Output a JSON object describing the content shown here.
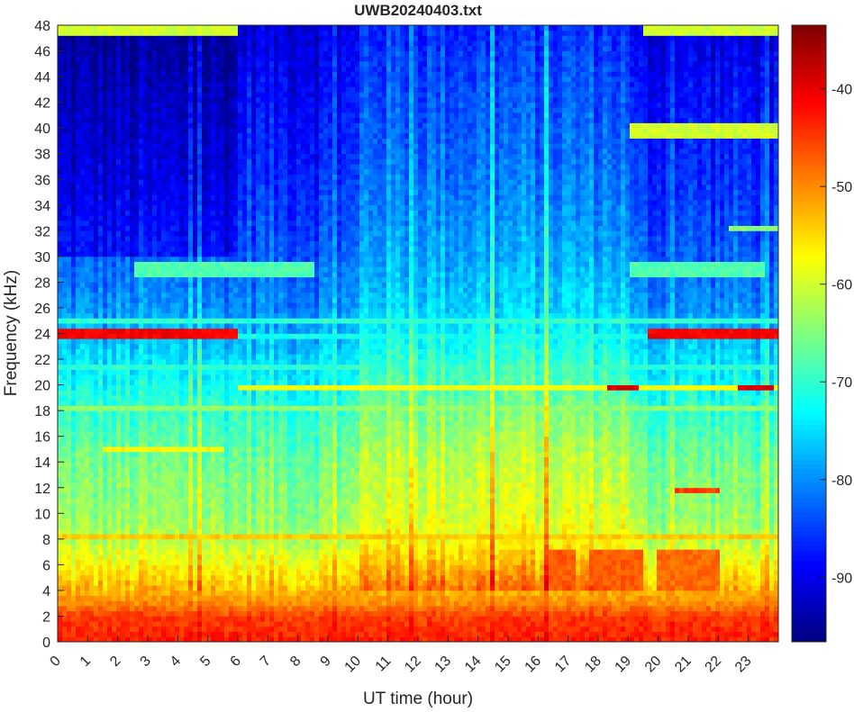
{
  "chart_data": {
    "type": "heatmap",
    "title": "UWB20240403.txt",
    "xlabel": "UT time (hour)",
    "ylabel": "Frequency (kHz)",
    "xlim": [
      0,
      24
    ],
    "ylim": [
      0,
      48
    ],
    "x_ticks": [
      0,
      1,
      2,
      3,
      4,
      5,
      6,
      7,
      8,
      9,
      10,
      11,
      12,
      13,
      14,
      15,
      16,
      17,
      18,
      19,
      20,
      21,
      22,
      23
    ],
    "y_ticks": [
      0,
      2,
      4,
      6,
      8,
      10,
      12,
      14,
      16,
      18,
      20,
      22,
      24,
      26,
      28,
      30,
      32,
      34,
      36,
      38,
      40,
      42,
      44,
      46,
      48
    ],
    "colormap": "jet",
    "clim": [
      -96.6,
      -33.5
    ],
    "colorbar_ticks": [
      -40,
      -50,
      -60,
      -70,
      -80,
      -90
    ],
    "background_profile_db": {
      "freq_khz": [
        0,
        2,
        3,
        5,
        8,
        10,
        14,
        18,
        22,
        26,
        30,
        36,
        44,
        48
      ],
      "level_db": [
        -43,
        -45,
        -50,
        -55,
        -62,
        -64,
        -66,
        -70,
        -75,
        -80,
        -83,
        -86,
        -89,
        -91
      ]
    },
    "features": [
      {
        "freq": 24,
        "width": 0.5,
        "t": [
          0,
          6
        ],
        "level": -41
      },
      {
        "freq": 24,
        "width": 0.5,
        "t": [
          19.6,
          24
        ],
        "level": -41
      },
      {
        "freq": 24,
        "width": 0.4,
        "t": [
          6,
          19.6
        ],
        "level": -72
      },
      {
        "freq": 25,
        "width": 0.3,
        "t": [
          0,
          24
        ],
        "level": -70
      },
      {
        "freq": 19.8,
        "width": 0.4,
        "t": [
          6,
          24
        ],
        "level": -58
      },
      {
        "freq": 19.8,
        "width": 0.6,
        "t": [
          18.3,
          19.3
        ],
        "level": -39
      },
      {
        "freq": 19.8,
        "width": 0.6,
        "t": [
          22.7,
          23.8
        ],
        "level": -39
      },
      {
        "freq": 8.3,
        "width": 0.4,
        "t": [
          0,
          24
        ],
        "level": -54
      },
      {
        "freq": 18.3,
        "width": 0.3,
        "t": [
          0,
          24
        ],
        "level": -64
      },
      {
        "freq": 21.5,
        "width": 0.3,
        "t": [
          0,
          24
        ],
        "level": -70
      },
      {
        "freq": 40,
        "width": 1.2,
        "t": [
          19,
          24
        ],
        "level": -60
      },
      {
        "freq": 29,
        "width": 1.0,
        "t": [
          2.5,
          8.5
        ],
        "level": -68
      },
      {
        "freq": 29,
        "width": 1.0,
        "t": [
          19,
          23.5
        ],
        "level": -68
      },
      {
        "freq": 15,
        "width": 0.4,
        "t": [
          1.5,
          5.5
        ],
        "level": -57
      },
      {
        "freq": 5.5,
        "width": 3.0,
        "t": [
          16.2,
          17.2
        ],
        "level": -47
      },
      {
        "freq": 5.5,
        "width": 3.0,
        "t": [
          17.7,
          19.5
        ],
        "level": -47
      },
      {
        "freq": 5.5,
        "width": 3.0,
        "t": [
          20,
          22
        ],
        "level": -48
      },
      {
        "freq": 11.9,
        "width": 0.3,
        "t": [
          20.5,
          22
        ],
        "level": -45
      },
      {
        "freq": 47.7,
        "width": 0.6,
        "t": [
          0,
          6
        ],
        "level": -60
      },
      {
        "freq": 47.7,
        "width": 0.6,
        "t": [
          19.5,
          24
        ],
        "level": -60
      },
      {
        "freq": 32.3,
        "width": 0.5,
        "t": [
          22.3,
          24
        ],
        "level": -64
      }
    ],
    "time_regions": [
      {
        "t": [
          0,
          6
        ],
        "fmin": 30,
        "offset": -5
      },
      {
        "t": [
          10,
          19
        ],
        "fmin": 4,
        "offset": 5
      }
    ]
  }
}
